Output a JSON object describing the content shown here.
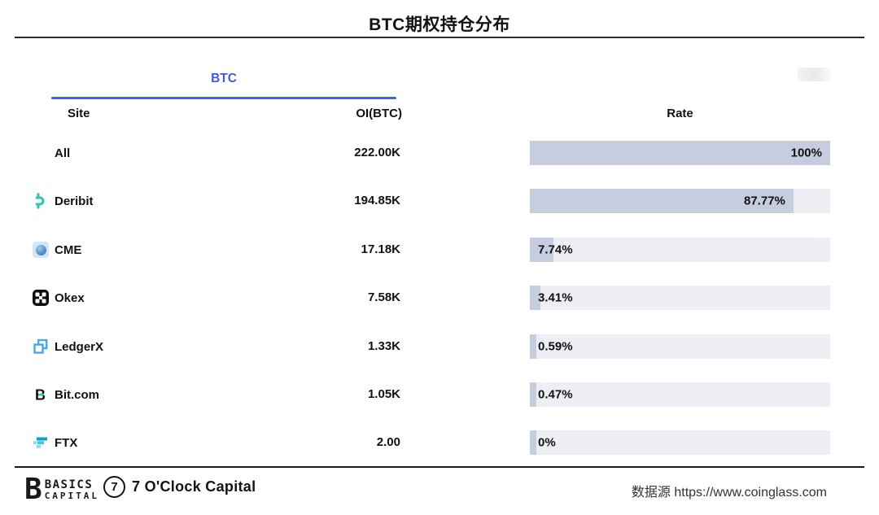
{
  "title": "BTC期权持仓分布",
  "tab": {
    "label": "BTC"
  },
  "table": {
    "headers": {
      "site": "Site",
      "oi": "OI(BTC)",
      "rate": "Rate"
    },
    "rows": [
      {
        "site": "All",
        "icon": "none",
        "oi": "222.00K",
        "rate": "100%",
        "rate_value": 100
      },
      {
        "site": "Deribit",
        "icon": "deribit-icon",
        "oi": "194.85K",
        "rate": "87.77%",
        "rate_value": 87.77
      },
      {
        "site": "CME",
        "icon": "cme-icon",
        "oi": "17.18K",
        "rate": "7.74%",
        "rate_value": 7.74
      },
      {
        "site": "Okex",
        "icon": "okex-icon",
        "oi": "7.58K",
        "rate": "3.41%",
        "rate_value": 3.41
      },
      {
        "site": "LedgerX",
        "icon": "ledgerx-icon",
        "oi": "1.33K",
        "rate": "0.59%",
        "rate_value": 0.59
      },
      {
        "site": "Bit.com",
        "icon": "bitcom-icon",
        "oi": "1.05K",
        "rate": "0.47%",
        "rate_value": 0.47
      },
      {
        "site": "FTX",
        "icon": "ftx-icon",
        "oi": "2.00",
        "rate": "0%",
        "rate_value": 0
      }
    ]
  },
  "chart_data": {
    "type": "bar",
    "orientation": "horizontal",
    "title": "BTC期权持仓分布",
    "categories": [
      "All",
      "Deribit",
      "CME",
      "Okex",
      "LedgerX",
      "Bit.com",
      "FTX"
    ],
    "series": [
      {
        "name": "OI(BTC)",
        "values": [
          "222.00K",
          "194.85K",
          "17.18K",
          "7.58K",
          "1.33K",
          "1.05K",
          "2.00"
        ]
      },
      {
        "name": "Rate",
        "values": [
          100,
          87.77,
          7.74,
          3.41,
          0.59,
          0.47,
          0
        ]
      }
    ],
    "xlim": [
      0,
      100
    ],
    "grid": false,
    "legend_position": "none",
    "source": "https://www.coinglass.com"
  },
  "footer": {
    "basics_logo": {
      "letter": "B",
      "line1": "BASICS",
      "line2": "CAPITAL"
    },
    "oclock_logo": {
      "digit": "7",
      "label": "7 O'Clock Capital"
    },
    "source": "数据源 https://www.coinglass.com"
  },
  "colors": {
    "accent_blue": "#4262e8",
    "tab_text": "#3d5ae8",
    "bar_fill": "#c6cddf",
    "bar_track": "#edeff4",
    "deribit_teal": "#2fc7a7",
    "ledgerx_blue": "#4aa8e8",
    "bitcom_green": "#2ecf94",
    "ftx_teal": "#02a8c9",
    "title_rule": "#2b2b2b"
  }
}
